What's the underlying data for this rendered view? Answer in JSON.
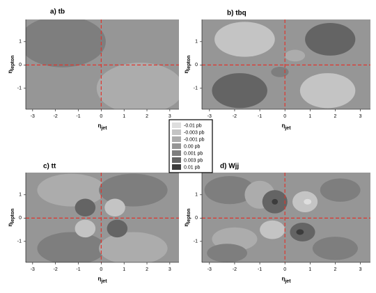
{
  "legend": {
    "levels": [
      {
        "value": -0.01,
        "label": "-0.01 pb"
      },
      {
        "value": -0.003,
        "label": "-0.003 pb"
      },
      {
        "value": -0.001,
        "label": "-0.001 pb"
      },
      {
        "value": 0,
        "label": "0.00 pb"
      },
      {
        "value": 0.001,
        "label": "0.001 pb"
      },
      {
        "value": 0.003,
        "label": "0.003 pb"
      },
      {
        "value": 0.01,
        "label": "0.01 pb"
      }
    ],
    "colors": [
      "#dedede",
      "#c4c4c4",
      "#acacac",
      "#969696",
      "#7e7e7e",
      "#646464",
      "#3c3c3c"
    ]
  },
  "chart_data": [
    {
      "type": "contour",
      "title": "a) tb",
      "xlabel": {
        "symbol": "η",
        "sub": "jet"
      },
      "ylabel": {
        "symbol": "η",
        "sub": "lepton"
      },
      "xlim": [
        -3.3,
        3.4
      ],
      "ylim": [
        -1.9,
        1.95
      ],
      "xticks": [
        -3,
        -2,
        -1,
        0,
        1,
        2,
        3
      ],
      "yticks": [
        -1,
        0,
        1
      ],
      "vline": 0,
      "hline": 0,
      "line_color": "#e0342c",
      "background": 0,
      "regions": [
        {
          "level": 0.001,
          "cx": -1.7,
          "cy": 1,
          "rx": 1.9,
          "ry": 1.1
        },
        {
          "level": -0.001,
          "cx": 1.7,
          "cy": -1,
          "rx": 1.9,
          "ry": 1.1
        }
      ]
    },
    {
      "type": "contour",
      "title": "b) tbq",
      "xlabel": {
        "symbol": "η",
        "sub": "jet"
      },
      "ylabel": {
        "symbol": "η",
        "sub": "lepton"
      },
      "xlim": [
        -3.3,
        3.4
      ],
      "ylim": [
        -1.9,
        1.95
      ],
      "xticks": [
        -3,
        -2,
        -1,
        0,
        1,
        2,
        3
      ],
      "yticks": [
        -1,
        0,
        1
      ],
      "vline": 0,
      "hline": 0,
      "line_color": "#e0342c",
      "background": 0,
      "regions": [
        {
          "level": -0.003,
          "cx": -1.6,
          "cy": 1.1,
          "rx": 1.2,
          "ry": 0.75
        },
        {
          "level": 0.003,
          "cx": 1.8,
          "cy": 1.1,
          "rx": 1.0,
          "ry": 0.7
        },
        {
          "level": 0.003,
          "cx": -1.8,
          "cy": -1.1,
          "rx": 1.1,
          "ry": 0.75
        },
        {
          "level": -0.003,
          "cx": 1.7,
          "cy": -1.1,
          "rx": 1.1,
          "ry": 0.75
        },
        {
          "level": -0.001,
          "cx": 0.4,
          "cy": 0.4,
          "rx": 0.4,
          "ry": 0.25
        },
        {
          "level": 0.001,
          "cx": -0.2,
          "cy": -0.3,
          "rx": 0.35,
          "ry": 0.22
        }
      ]
    },
    {
      "type": "contour",
      "title": "c) tt",
      "xlabel": {
        "symbol": "η",
        "sub": "jet"
      },
      "ylabel": {
        "symbol": "η",
        "sub": "lepton"
      },
      "xlim": [
        -3.3,
        3.4
      ],
      "ylim": [
        -1.9,
        1.95
      ],
      "xticks": [
        -3,
        -2,
        -1,
        0,
        1,
        2,
        3
      ],
      "yticks": [
        -1,
        0,
        1
      ],
      "vline": 0,
      "hline": 0,
      "line_color": "#e0342c",
      "background": 0,
      "regions": [
        {
          "level": -0.001,
          "cx": -1.3,
          "cy": 1.2,
          "rx": 1.5,
          "ry": 0.7
        },
        {
          "level": 0.001,
          "cx": 1.4,
          "cy": 1.2,
          "rx": 1.5,
          "ry": 0.7
        },
        {
          "level": 0.001,
          "cx": -1.3,
          "cy": -1.3,
          "rx": 1.5,
          "ry": 0.7
        },
        {
          "level": -0.001,
          "cx": 1.4,
          "cy": -1.3,
          "rx": 1.5,
          "ry": 0.7
        },
        {
          "level": 0.003,
          "cx": -0.7,
          "cy": 0.45,
          "rx": 0.45,
          "ry": 0.38
        },
        {
          "level": -0.003,
          "cx": 0.6,
          "cy": 0.45,
          "rx": 0.45,
          "ry": 0.38
        },
        {
          "level": -0.003,
          "cx": -0.7,
          "cy": -0.45,
          "rx": 0.45,
          "ry": 0.38
        },
        {
          "level": 0.003,
          "cx": 0.7,
          "cy": -0.45,
          "rx": 0.45,
          "ry": 0.38
        }
      ]
    },
    {
      "type": "contour",
      "title": "d) Wjj",
      "xlabel": {
        "symbol": "η",
        "sub": "jet"
      },
      "ylabel": {
        "symbol": "η",
        "sub": "lepton"
      },
      "xlim": [
        -3.3,
        3.4
      ],
      "ylim": [
        -1.9,
        1.95
      ],
      "xticks": [
        -3,
        -2,
        -1,
        0,
        1,
        2,
        3
      ],
      "yticks": [
        -1,
        0,
        1
      ],
      "vline": 0,
      "hline": 0,
      "line_color": "#e0342c",
      "background": 0,
      "regions": [
        {
          "level": 0.001,
          "cx": -2.2,
          "cy": 1.2,
          "rx": 1.0,
          "ry": 0.6
        },
        {
          "level": -0.001,
          "cx": -1,
          "cy": 1.0,
          "rx": 0.6,
          "ry": 0.6
        },
        {
          "level": 0.003,
          "cx": -0.4,
          "cy": 0.7,
          "rx": 0.5,
          "ry": 0.5
        },
        {
          "level": 0.01,
          "cx": -0.4,
          "cy": 0.7,
          "rx": 0.12,
          "ry": 0.12
        },
        {
          "level": -0.003,
          "cx": 0.8,
          "cy": 0.7,
          "rx": 0.5,
          "ry": 0.45
        },
        {
          "level": -0.01,
          "cx": 0.9,
          "cy": 0.7,
          "rx": 0.15,
          "ry": 0.12
        },
        {
          "level": 0.001,
          "cx": 2.2,
          "cy": 1.2,
          "rx": 0.8,
          "ry": 0.5
        },
        {
          "level": -0.001,
          "cx": -2,
          "cy": -0.9,
          "rx": 0.9,
          "ry": 0.5
        },
        {
          "level": -0.003,
          "cx": -0.5,
          "cy": -0.5,
          "rx": 0.5,
          "ry": 0.4
        },
        {
          "level": 0.003,
          "cx": 0.7,
          "cy": -0.6,
          "rx": 0.5,
          "ry": 0.4
        },
        {
          "level": 0.01,
          "cx": 0.6,
          "cy": -0.6,
          "rx": 0.15,
          "ry": 0.12
        },
        {
          "level": 0.001,
          "cx": 2,
          "cy": -1.3,
          "rx": 0.9,
          "ry": 0.5
        },
        {
          "level": 0.001,
          "cx": -2.3,
          "cy": -1.5,
          "rx": 0.8,
          "ry": 0.4
        }
      ]
    }
  ]
}
